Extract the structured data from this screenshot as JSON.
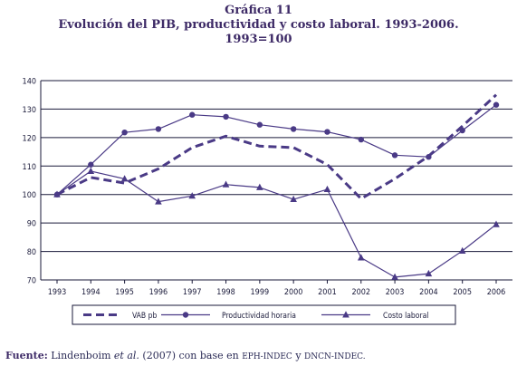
{
  "figure": {
    "label": "Gráfica 11",
    "title": "Evolución del PIB, productividad y costo laboral. 1993-2006.",
    "base": "1993=100"
  },
  "source": {
    "label": "Fuente:",
    "authors": "Lindenboim",
    "etal": "et al.",
    "text_1": "(2007) con base en",
    "org_1": "EPH-INDEC",
    "conj": "y",
    "org_2": "DNCN-INDEC."
  },
  "colors": {
    "series": "#4a3a86",
    "axis": "#1a1a3a",
    "grid": "#1a1a3a",
    "title": "#3d2a66"
  },
  "chart_data": {
    "type": "line",
    "categories": [
      "1993",
      "1994",
      "1995",
      "1996",
      "1997",
      "1998",
      "1999",
      "2000",
      "2001",
      "2002",
      "2003",
      "2004",
      "2005",
      "2006"
    ],
    "ylim": [
      70,
      140
    ],
    "yticks": [
      "70",
      "80",
      "90",
      "100",
      "110",
      "120",
      "130",
      "140"
    ],
    "grid": "horizontal",
    "legend_position": "bottom",
    "series": [
      {
        "name": "VAB pb",
        "style": "dashed",
        "marker": "none",
        "values": [
          100,
          106,
          104,
          109,
          116.5,
          120.5,
          117,
          116.5,
          110.5,
          98.5,
          105.5,
          113.5,
          124,
          135
        ]
      },
      {
        "name": "Productividad horaria",
        "style": "solid",
        "marker": "circle",
        "values": [
          100,
          110.5,
          121.8,
          123,
          128,
          127.3,
          124.5,
          123,
          122,
          119.3,
          113.8,
          113.2,
          122.5,
          131.5
        ]
      },
      {
        "name": "Costo laboral",
        "style": "solid",
        "marker": "triangle",
        "values": [
          100,
          108.2,
          105.5,
          97.5,
          99.5,
          103.5,
          102.5,
          98.3,
          101.8,
          77.8,
          71,
          72.2,
          80.2,
          89.5
        ]
      }
    ]
  }
}
